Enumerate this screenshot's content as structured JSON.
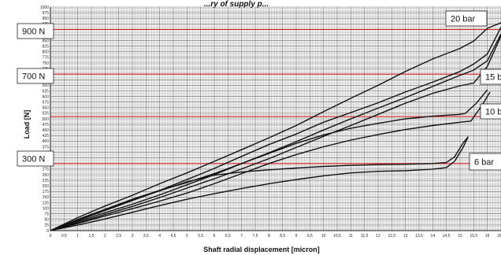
{
  "chart_data": {
    "type": "line",
    "title": "...ry of supply p...",
    "xlabel": "Shaft radial displacement [micron]",
    "ylabel": "Load [N]",
    "xlim": [
      0,
      16.5
    ],
    "ylim": [
      0,
      1000
    ],
    "x_ticks": [
      "0",
      "0,5",
      "1",
      "1,5",
      "2",
      "2,5",
      "3",
      "3,5",
      "4",
      "4,5",
      "5",
      "5,5",
      "6",
      "6,5",
      "7",
      "7,5",
      "8",
      "8,5",
      "9",
      "9,5",
      "10",
      "10,5",
      "11",
      "11,5",
      "12",
      "12,5",
      "13",
      "13,5",
      "14",
      "14,5",
      "15",
      "15,5",
      "16",
      "16,5"
    ],
    "y_ticks": [
      "0",
      "25",
      "50",
      "75",
      "100",
      "125",
      "150",
      "175",
      "200",
      "225",
      "250",
      "275",
      "300",
      "325",
      "350",
      "375",
      "400",
      "425",
      "450",
      "475",
      "500",
      "525",
      "550",
      "575",
      "600",
      "625",
      "650",
      "675",
      "700",
      "725",
      "750",
      "775",
      "800",
      "825",
      "850",
      "875",
      "900",
      "925",
      "950",
      "975",
      "1000"
    ],
    "grid": true,
    "reference_lines": [
      {
        "label": "900 N",
        "y": 900
      },
      {
        "label": "700 N",
        "y": 700
      },
      {
        "label": "300 N",
        "y": 300
      },
      {
        "label": "",
        "y": 510
      }
    ],
    "pressure_labels": [
      "20 bar",
      "15 b",
      "10 b",
      "6 bar"
    ],
    "series": [
      {
        "x": [
          0,
          1,
          2,
          3,
          4,
          5,
          6,
          7,
          8,
          9,
          10,
          11,
          12,
          13,
          14,
          15,
          15.5,
          16,
          16.5
        ],
        "values": [
          0,
          58,
          110,
          158,
          210,
          258,
          310,
          362,
          415,
          470,
          532,
          592,
          650,
          712,
          768,
          815,
          848,
          905,
          930
        ]
      },
      {
        "x": [
          0,
          1,
          2,
          3,
          4,
          5,
          6,
          7,
          8,
          9,
          10,
          11,
          12,
          13,
          14,
          15,
          15.5,
          16,
          16.5
        ],
        "values": [
          0,
          45,
          90,
          135,
          180,
          228,
          278,
          332,
          385,
          432,
          485,
          528,
          572,
          620,
          664,
          712,
          745,
          790,
          910
        ]
      },
      {
        "x": [
          0,
          1,
          2,
          3,
          4,
          5,
          6,
          7,
          8,
          9,
          10,
          11,
          12,
          13,
          14,
          15,
          15.5,
          16,
          16.5
        ],
        "values": [
          0,
          40,
          80,
          118,
          160,
          205,
          250,
          300,
          348,
          398,
          450,
          500,
          548,
          595,
          645,
          695,
          718,
          760,
          880
        ]
      },
      {
        "x": [
          0,
          1,
          2,
          3,
          4,
          5,
          6,
          7,
          8,
          9,
          10,
          11,
          12,
          13,
          14,
          15,
          15.5,
          16,
          16.5
        ],
        "values": [
          0,
          35,
          72,
          108,
          148,
          190,
          232,
          276,
          322,
          372,
          422,
          470,
          520,
          570,
          614,
          648,
          660,
          735,
          870
        ]
      },
      {
        "x": [
          0,
          1,
          2,
          3,
          4,
          5,
          6,
          7,
          8,
          9,
          10,
          11,
          12,
          13,
          14,
          15,
          15.2,
          15.6,
          16
        ],
        "values": [
          0,
          50,
          95,
          140,
          180,
          215,
          255,
          300,
          345,
          390,
          428,
          458,
          480,
          500,
          512,
          520,
          525,
          570,
          630
        ]
      },
      {
        "x": [
          0,
          1,
          2,
          3,
          4,
          5,
          6,
          7,
          8,
          9,
          10,
          11,
          12,
          13,
          14,
          15,
          15.4,
          15.8,
          16.1
        ],
        "values": [
          0,
          32,
          65,
          98,
          132,
          168,
          210,
          255,
          300,
          340,
          375,
          405,
          430,
          452,
          470,
          485,
          490,
          560,
          620
        ]
      },
      {
        "x": [
          0,
          1,
          2,
          3,
          4,
          5,
          6,
          7,
          8,
          9,
          10,
          11,
          12,
          13,
          14,
          14.5,
          14.8,
          15.1,
          15.3
        ],
        "values": [
          0,
          48,
          90,
          135,
          178,
          218,
          248,
          262,
          272,
          280,
          287,
          292,
          295,
          297,
          300,
          305,
          330,
          390,
          420
        ]
      },
      {
        "x": [
          0,
          1,
          2,
          3,
          4,
          5,
          6,
          7,
          8,
          9,
          10,
          11,
          12,
          13,
          14,
          14.5,
          14.8,
          15.1,
          15.3
        ],
        "values": [
          0,
          25,
          52,
          82,
          112,
          140,
          165,
          188,
          210,
          228,
          245,
          258,
          265,
          268,
          275,
          282,
          310,
          370,
          420
        ]
      }
    ]
  }
}
